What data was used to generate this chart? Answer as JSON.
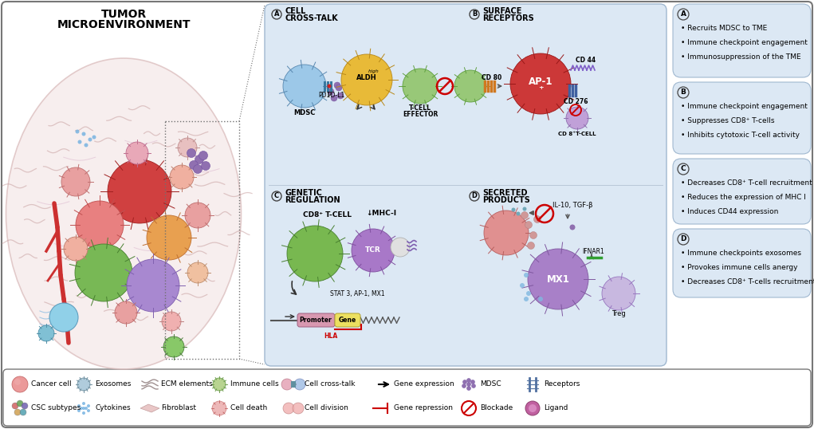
{
  "bg_color": "#ffffff",
  "panel_bg": "#dce8f4",
  "annotation_bg": "#dce8f4",
  "border_color": "#a0b8d0",
  "anno_A_lines": [
    "• Recruits MDSC to TME",
    "• Immune checkpoint engagement",
    "• Immunosuppression of the TME"
  ],
  "anno_B_lines": [
    "• Immune checkpoint engagement",
    "• Suppresses CD8⁺ T-cells",
    "• Inhibits cytotoxic T-cell activity"
  ],
  "anno_C_lines": [
    "• Decreases CD8⁺ T-cell recruitment",
    "• Reduces the expression of MHC I",
    "• Induces CD44 expression"
  ],
  "anno_D_lines": [
    "• Immune checkpoints exosomes",
    "• Provokes immune cells anergy",
    "• Decreases CD8⁺ T-cells recruitment"
  ]
}
